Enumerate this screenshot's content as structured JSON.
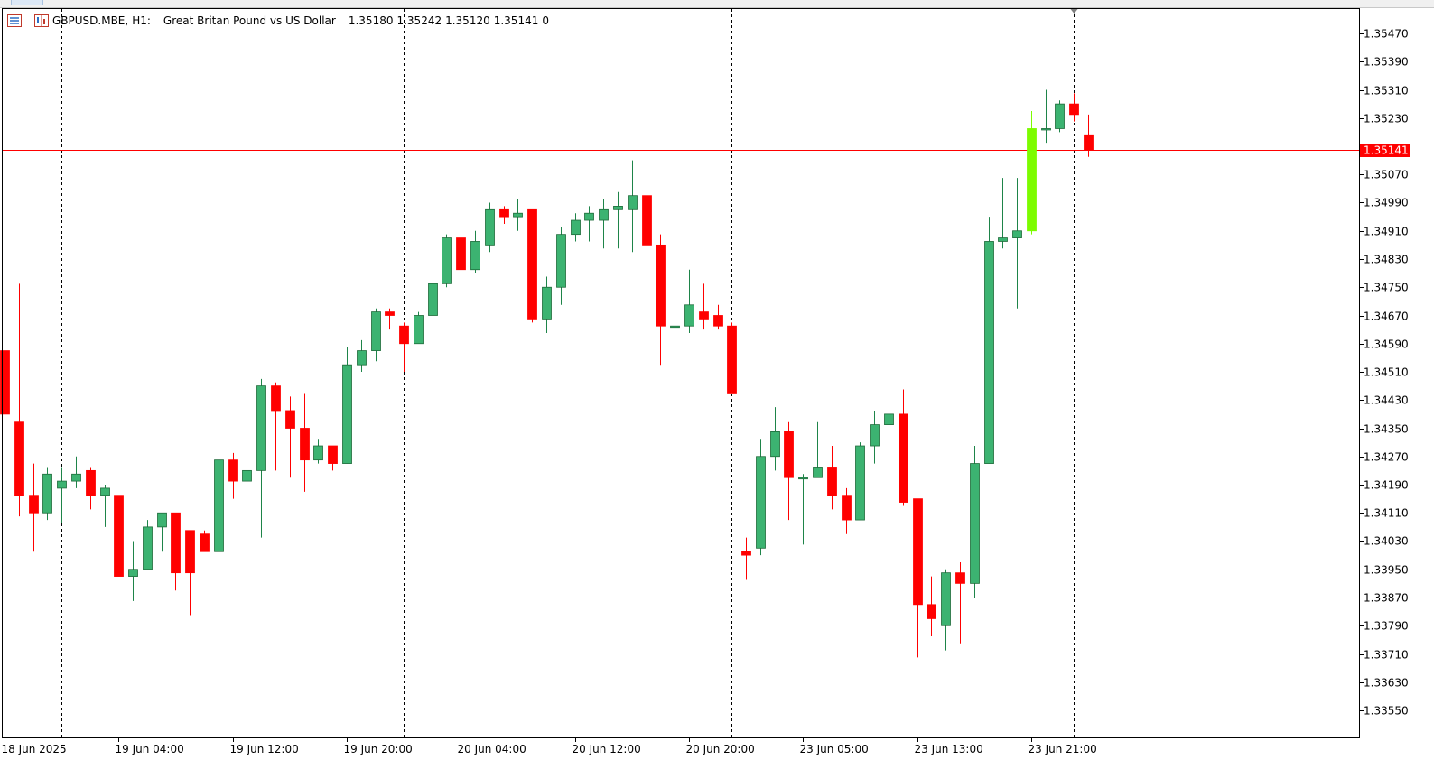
{
  "header": {
    "symbol": "GBPUSD.MBE,",
    "timeframe": "H1:",
    "description": "Great Britan Pound vs US Dollar",
    "open": "1.35180",
    "high": "1.35242",
    "low": "1.35120",
    "close": "1.35141",
    "volume": "0"
  },
  "colors": {
    "bull": "#3cb371",
    "bear": "#ff0000",
    "bull_current": "#7cfc00",
    "price_line": "#ff0000",
    "grid": "#000000",
    "axis": "#000000"
  },
  "chart_data": {
    "type": "candlestick",
    "y_ticks": [
      "1.35470",
      "1.35390",
      "1.35310",
      "1.35230",
      "1.35070",
      "1.34990",
      "1.34910",
      "1.34830",
      "1.34750",
      "1.34670",
      "1.34590",
      "1.34510",
      "1.34430",
      "1.34350",
      "1.34270",
      "1.34190",
      "1.34110",
      "1.34030",
      "1.33950",
      "1.33870",
      "1.33790",
      "1.33710",
      "1.33630",
      "1.33550"
    ],
    "ylim": [
      1.3351,
      1.3556
    ],
    "current_price": "1.35141",
    "x_labels": [
      "18 Jun 2025",
      "19 Jun 04:00",
      "19 Jun 12:00",
      "19 Jun 20:00",
      "20 Jun 04:00",
      "20 Jun 12:00",
      "20 Jun 20:00",
      "23 Jun 05:00",
      "23 Jun 13:00",
      "23 Jun 21:00"
    ],
    "x_label_index": [
      0,
      8,
      16,
      24,
      32,
      40,
      48,
      56,
      64,
      72
    ],
    "day_separator_index": [
      4,
      28,
      51,
      75
    ],
    "ohlc": [
      [
        1.3457,
        1.3457,
        1.3439,
        1.3439
      ],
      [
        1.3437,
        1.3476,
        1.341,
        1.3416
      ],
      [
        1.3416,
        1.3425,
        1.34,
        1.3411
      ],
      [
        1.3411,
        1.3424,
        1.3409,
        1.3422
      ],
      [
        1.3418,
        1.3424,
        1.3408,
        1.342
      ],
      [
        1.342,
        1.3427,
        1.3418,
        1.3422
      ],
      [
        1.3423,
        1.3424,
        1.3412,
        1.3416
      ],
      [
        1.3416,
        1.3419,
        1.3407,
        1.3418
      ],
      [
        1.3416,
        1.3416,
        1.3393,
        1.3393
      ],
      [
        1.3393,
        1.3403,
        1.3386,
        1.3395
      ],
      [
        1.3395,
        1.3409,
        1.3395,
        1.3407
      ],
      [
        1.3407,
        1.3411,
        1.34,
        1.3411
      ],
      [
        1.3411,
        1.3411,
        1.3389,
        1.3394
      ],
      [
        1.3406,
        1.3406,
        1.3382,
        1.3394
      ],
      [
        1.3405,
        1.3406,
        1.34,
        1.34
      ],
      [
        1.34,
        1.3428,
        1.3397,
        1.3426
      ],
      [
        1.3426,
        1.3428,
        1.3415,
        1.342
      ],
      [
        1.342,
        1.3432,
        1.3418,
        1.3423
      ],
      [
        1.3423,
        1.3449,
        1.3404,
        1.3447
      ],
      [
        1.3447,
        1.3448,
        1.3423,
        1.344
      ],
      [
        1.344,
        1.3444,
        1.3421,
        1.3435
      ],
      [
        1.3435,
        1.3445,
        1.3417,
        1.3426
      ],
      [
        1.3426,
        1.3432,
        1.3425,
        1.343
      ],
      [
        1.343,
        1.343,
        1.3423,
        1.3425
      ],
      [
        1.3425,
        1.3458,
        1.3425,
        1.3453
      ],
      [
        1.3453,
        1.346,
        1.3451,
        1.3457
      ],
      [
        1.3457,
        1.3469,
        1.3454,
        1.3468
      ],
      [
        1.3468,
        1.3469,
        1.3463,
        1.3467
      ],
      [
        1.3464,
        1.3465,
        1.3451,
        1.3459
      ],
      [
        1.3459,
        1.3468,
        1.3459,
        1.3467
      ],
      [
        1.3467,
        1.3478,
        1.3466,
        1.3476
      ],
      [
        1.3476,
        1.349,
        1.3475,
        1.3489
      ],
      [
        1.3489,
        1.349,
        1.3479,
        1.348
      ],
      [
        1.348,
        1.3491,
        1.3479,
        1.3488
      ],
      [
        1.3487,
        1.3499,
        1.3485,
        1.3497
      ],
      [
        1.3497,
        1.3498,
        1.3493,
        1.3495
      ],
      [
        1.3495,
        1.35,
        1.3491,
        1.3496
      ],
      [
        1.3497,
        1.3497,
        1.3465,
        1.3466
      ],
      [
        1.3466,
        1.3478,
        1.3462,
        1.3475
      ],
      [
        1.3475,
        1.3492,
        1.347,
        1.349
      ],
      [
        1.349,
        1.3496,
        1.3488,
        1.3494
      ],
      [
        1.3494,
        1.3498,
        1.3488,
        1.3496
      ],
      [
        1.3494,
        1.35,
        1.3486,
        1.3497
      ],
      [
        1.3497,
        1.3502,
        1.3486,
        1.3498
      ],
      [
        1.3497,
        1.3511,
        1.3485,
        1.3501
      ],
      [
        1.3501,
        1.3503,
        1.3485,
        1.3487
      ],
      [
        1.3487,
        1.349,
        1.3453,
        1.3464
      ],
      [
        1.3464,
        1.348,
        1.3463,
        1.3464
      ],
      [
        1.3464,
        1.348,
        1.3462,
        1.347
      ],
      [
        1.3468,
        1.3476,
        1.3463,
        1.3466
      ],
      [
        1.3467,
        1.347,
        1.3463,
        1.3464
      ],
      [
        1.3464,
        1.3465,
        1.3445,
        1.3445
      ],
      [
        1.34,
        1.3404,
        1.3392,
        1.3399
      ],
      [
        1.3401,
        1.3432,
        1.3399,
        1.3427
      ],
      [
        1.3427,
        1.3441,
        1.3423,
        1.3434
      ],
      [
        1.3434,
        1.3437,
        1.3409,
        1.3421
      ],
      [
        1.3421,
        1.3422,
        1.3402,
        1.3421
      ],
      [
        1.3421,
        1.3437,
        1.3421,
        1.3424
      ],
      [
        1.3424,
        1.343,
        1.3412,
        1.3416
      ],
      [
        1.3416,
        1.3418,
        1.3405,
        1.3409
      ],
      [
        1.3409,
        1.3431,
        1.3409,
        1.343
      ],
      [
        1.343,
        1.344,
        1.3425,
        1.3436
      ],
      [
        1.3436,
        1.3448,
        1.3433,
        1.3439
      ],
      [
        1.3439,
        1.3446,
        1.3413,
        1.3414
      ],
      [
        1.3415,
        1.3415,
        1.337,
        1.3385
      ],
      [
        1.3385,
        1.3393,
        1.3376,
        1.3381
      ],
      [
        1.3379,
        1.3395,
        1.3372,
        1.3394
      ],
      [
        1.3394,
        1.3397,
        1.3374,
        1.3391
      ],
      [
        1.3391,
        1.343,
        1.3387,
        1.3425
      ],
      [
        1.3425,
        1.3495,
        1.3425,
        1.3488
      ],
      [
        1.3488,
        1.3506,
        1.3486,
        1.3489
      ],
      [
        1.3489,
        1.3506,
        1.3469,
        1.3491
      ],
      [
        1.3491,
        1.3525,
        1.349,
        1.352
      ],
      [
        1.352,
        1.3531,
        1.3516,
        1.352
      ],
      [
        1.352,
        1.3528,
        1.3519,
        1.3527
      ],
      [
        1.3527,
        1.353,
        1.3522,
        1.3524
      ],
      [
        1.3518,
        1.3524,
        1.3512,
        1.3514
      ]
    ]
  }
}
